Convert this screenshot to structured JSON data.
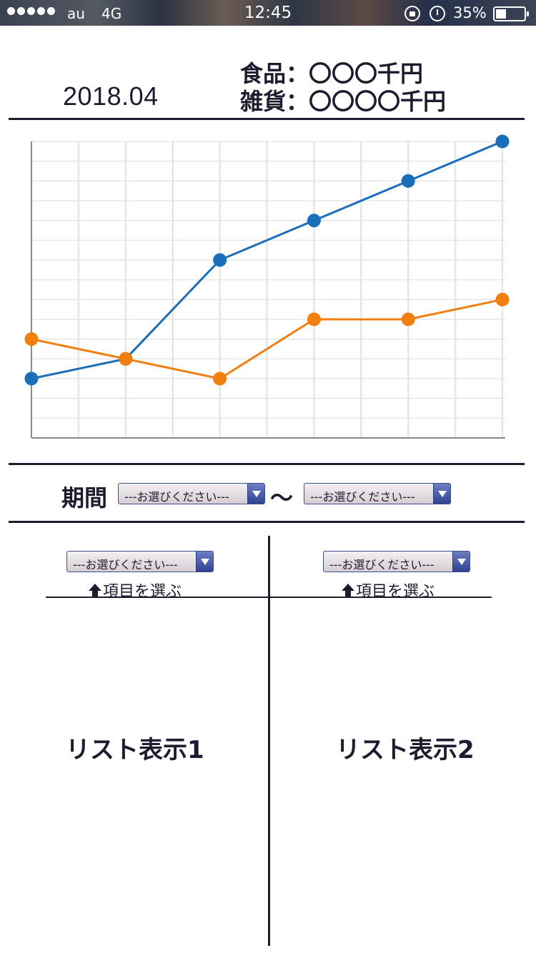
{
  "status_bar": {
    "carrier": "au",
    "network": "4G",
    "time": "12:45",
    "battery_percent": "35%",
    "signal_strength": 5,
    "battery_level": 0.35,
    "icons": [
      "signal-dots-icon",
      "rotation-lock-icon",
      "alarm-icon",
      "battery-icon"
    ]
  },
  "header": {
    "period": "2018.04",
    "food_line": "食品：〇〇〇千円",
    "goods_line": "雑貨：〇〇〇〇千円"
  },
  "chart_data": {
    "type": "line",
    "title": "",
    "xlabel": "",
    "ylabel": "",
    "grid": true,
    "x": [
      0,
      1,
      2,
      3,
      4,
      5
    ],
    "ylim": [
      0,
      15
    ],
    "series": [
      {
        "color": "#1a6fb8",
        "values": [
          3,
          4,
          9,
          11,
          13,
          15
        ]
      },
      {
        "color": "#f07f0f",
        "values": [
          5,
          4,
          3,
          6,
          6,
          7
        ]
      }
    ]
  },
  "period_filter": {
    "label": "期間",
    "separator": "〜",
    "start_select": "---お選びください---",
    "end_select": "---お選びください---"
  },
  "lists": [
    {
      "select": "---お選びください---",
      "hint": "項目を選ぶ",
      "label": "リスト表示1"
    },
    {
      "select": "---お選びください---",
      "hint": "項目を選ぶ",
      "label": "リスト表示2"
    }
  ]
}
